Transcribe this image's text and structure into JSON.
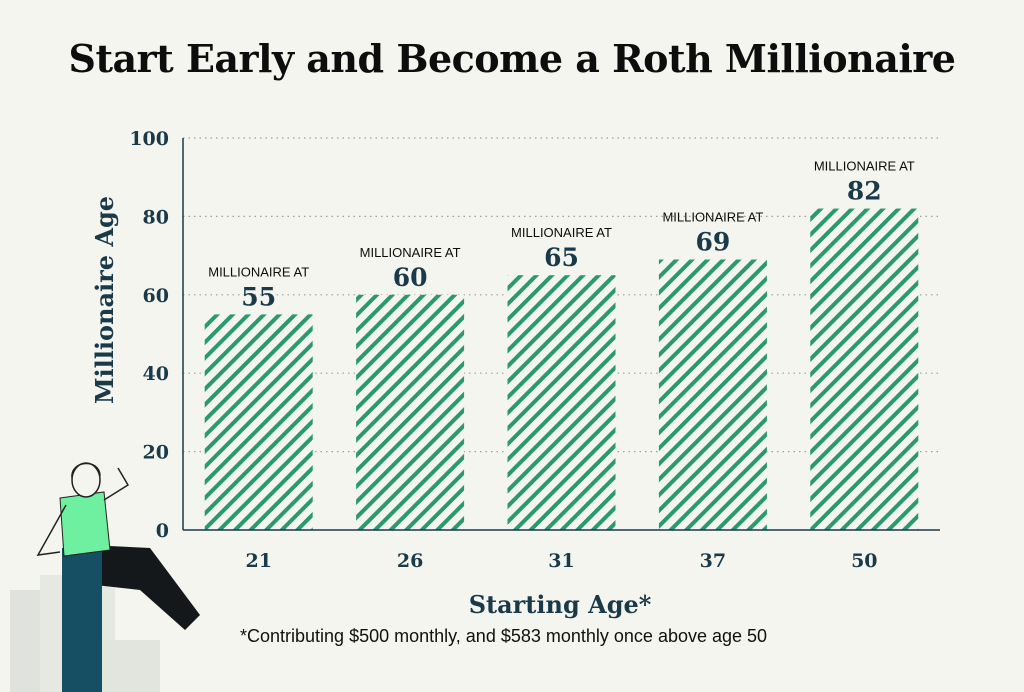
{
  "title": "Start Early and Become a Roth Millionaire",
  "footnote": "*Contributing $500 monthly, and $583 monthly once above age 50",
  "colors": {
    "background": "#f4f5ee",
    "bar_stripe": "#2a9a6a",
    "axis": "#1a3a4a",
    "text": "#0d0d0d",
    "grid": "#9aa0a0"
  },
  "chart_data": {
    "type": "bar",
    "categories": [
      "21",
      "26",
      "31",
      "37",
      "50"
    ],
    "values": [
      55,
      60,
      65,
      69,
      82
    ],
    "bar_label_prefix": "MILLIONAIRE AT",
    "data_labels": [
      "55",
      "60",
      "65",
      "69",
      "82"
    ],
    "xlabel": "Starting Age*",
    "ylabel": "Millionaire Age",
    "ylim": [
      0,
      100
    ],
    "yticks": [
      "0",
      "20",
      "40",
      "60",
      "80",
      "100"
    ],
    "grid": true,
    "grid_style": "dotted",
    "bar_fill": "diagonal-hatch"
  }
}
